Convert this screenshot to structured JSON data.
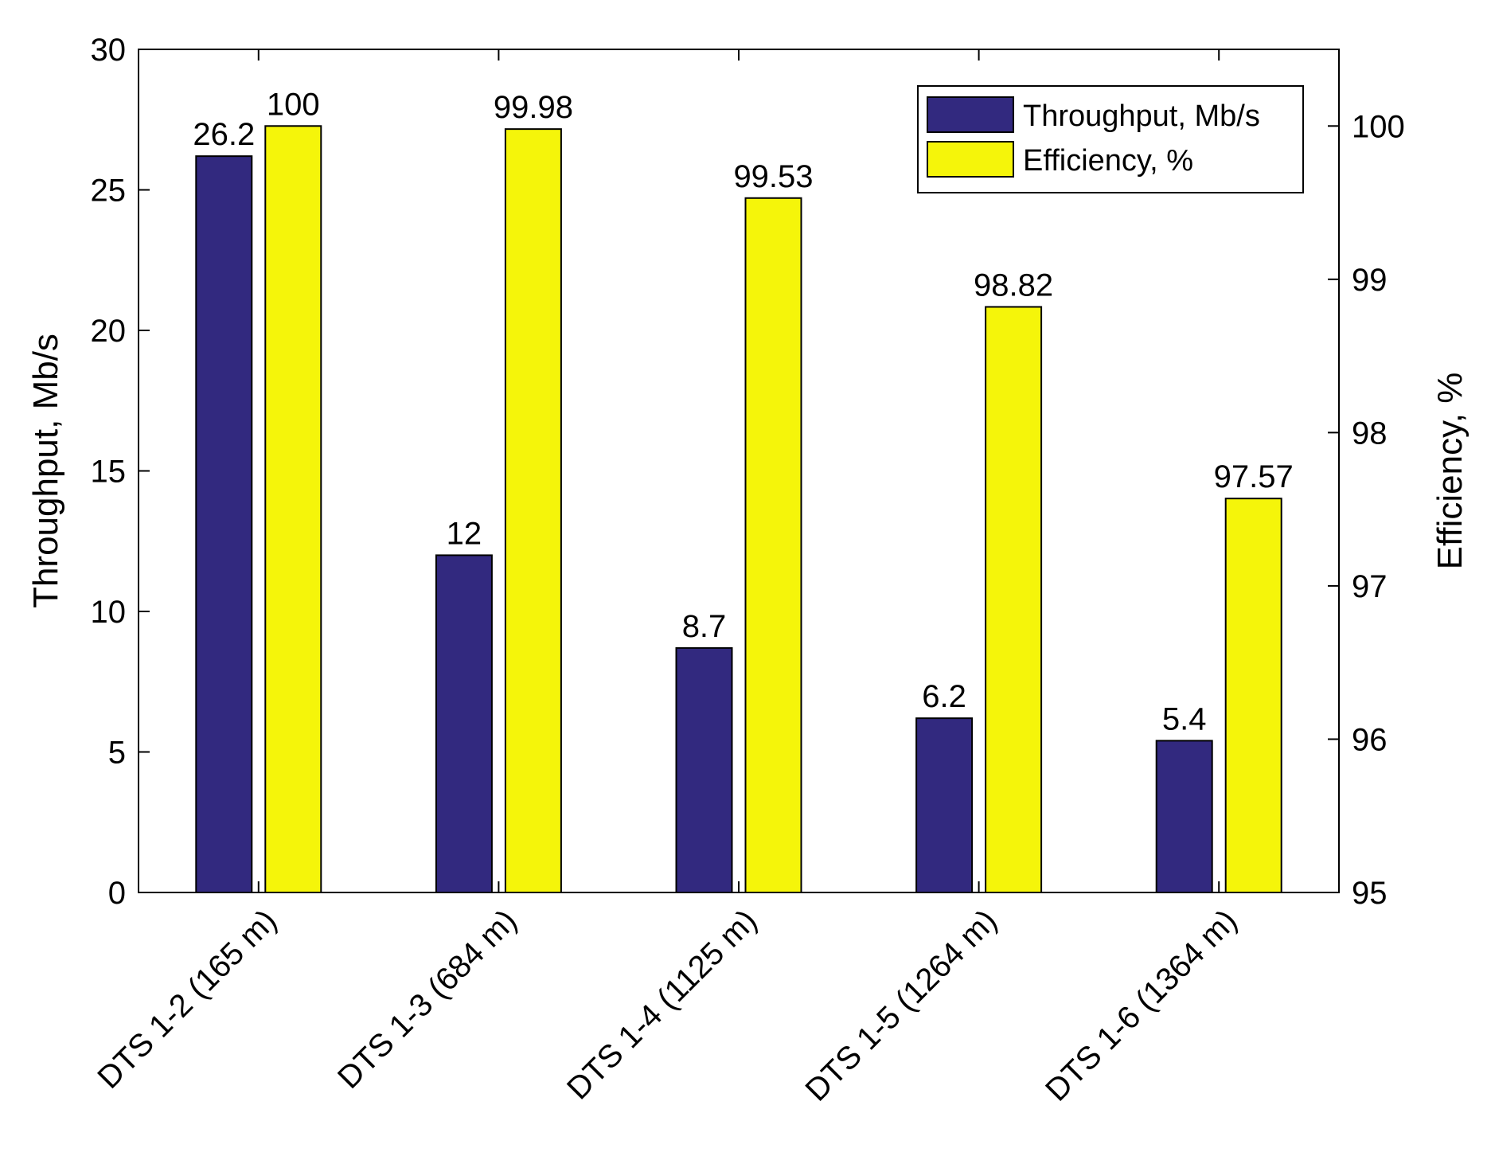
{
  "chart_data": {
    "type": "bar",
    "categories": [
      "DTS 1-2 (165 m)",
      "DTS 1-3 (684 m)",
      "DTS 1-4 (1125 m)",
      "DTS 1-5 (1264 m)",
      "DTS 1-6 (1364 m)"
    ],
    "series": [
      {
        "name": "Throughput, Mb/s",
        "axis": "left",
        "color": "#32297f",
        "values": [
          26.2,
          12,
          8.7,
          6.2,
          5.4
        ],
        "labels": [
          "26.2",
          "12",
          "8.7",
          "6.2",
          "5.4"
        ]
      },
      {
        "name": "Efficiency, %",
        "axis": "right",
        "color": "#f5f50a",
        "values": [
          100,
          99.98,
          99.53,
          98.82,
          97.57
        ],
        "labels": [
          "100",
          "99.98",
          "99.53",
          "98.82",
          "97.57"
        ]
      }
    ],
    "ylabel": "Throughput, Mb/s",
    "y2label": "Efficiency, %",
    "ylim": [
      0,
      30
    ],
    "y2lim": [
      95,
      100.5
    ],
    "yticks": [
      0,
      5,
      10,
      15,
      20,
      25,
      30
    ],
    "y2ticks": [
      95,
      96,
      97,
      98,
      99,
      100
    ],
    "grid": false,
    "legend_position": "top-right"
  }
}
